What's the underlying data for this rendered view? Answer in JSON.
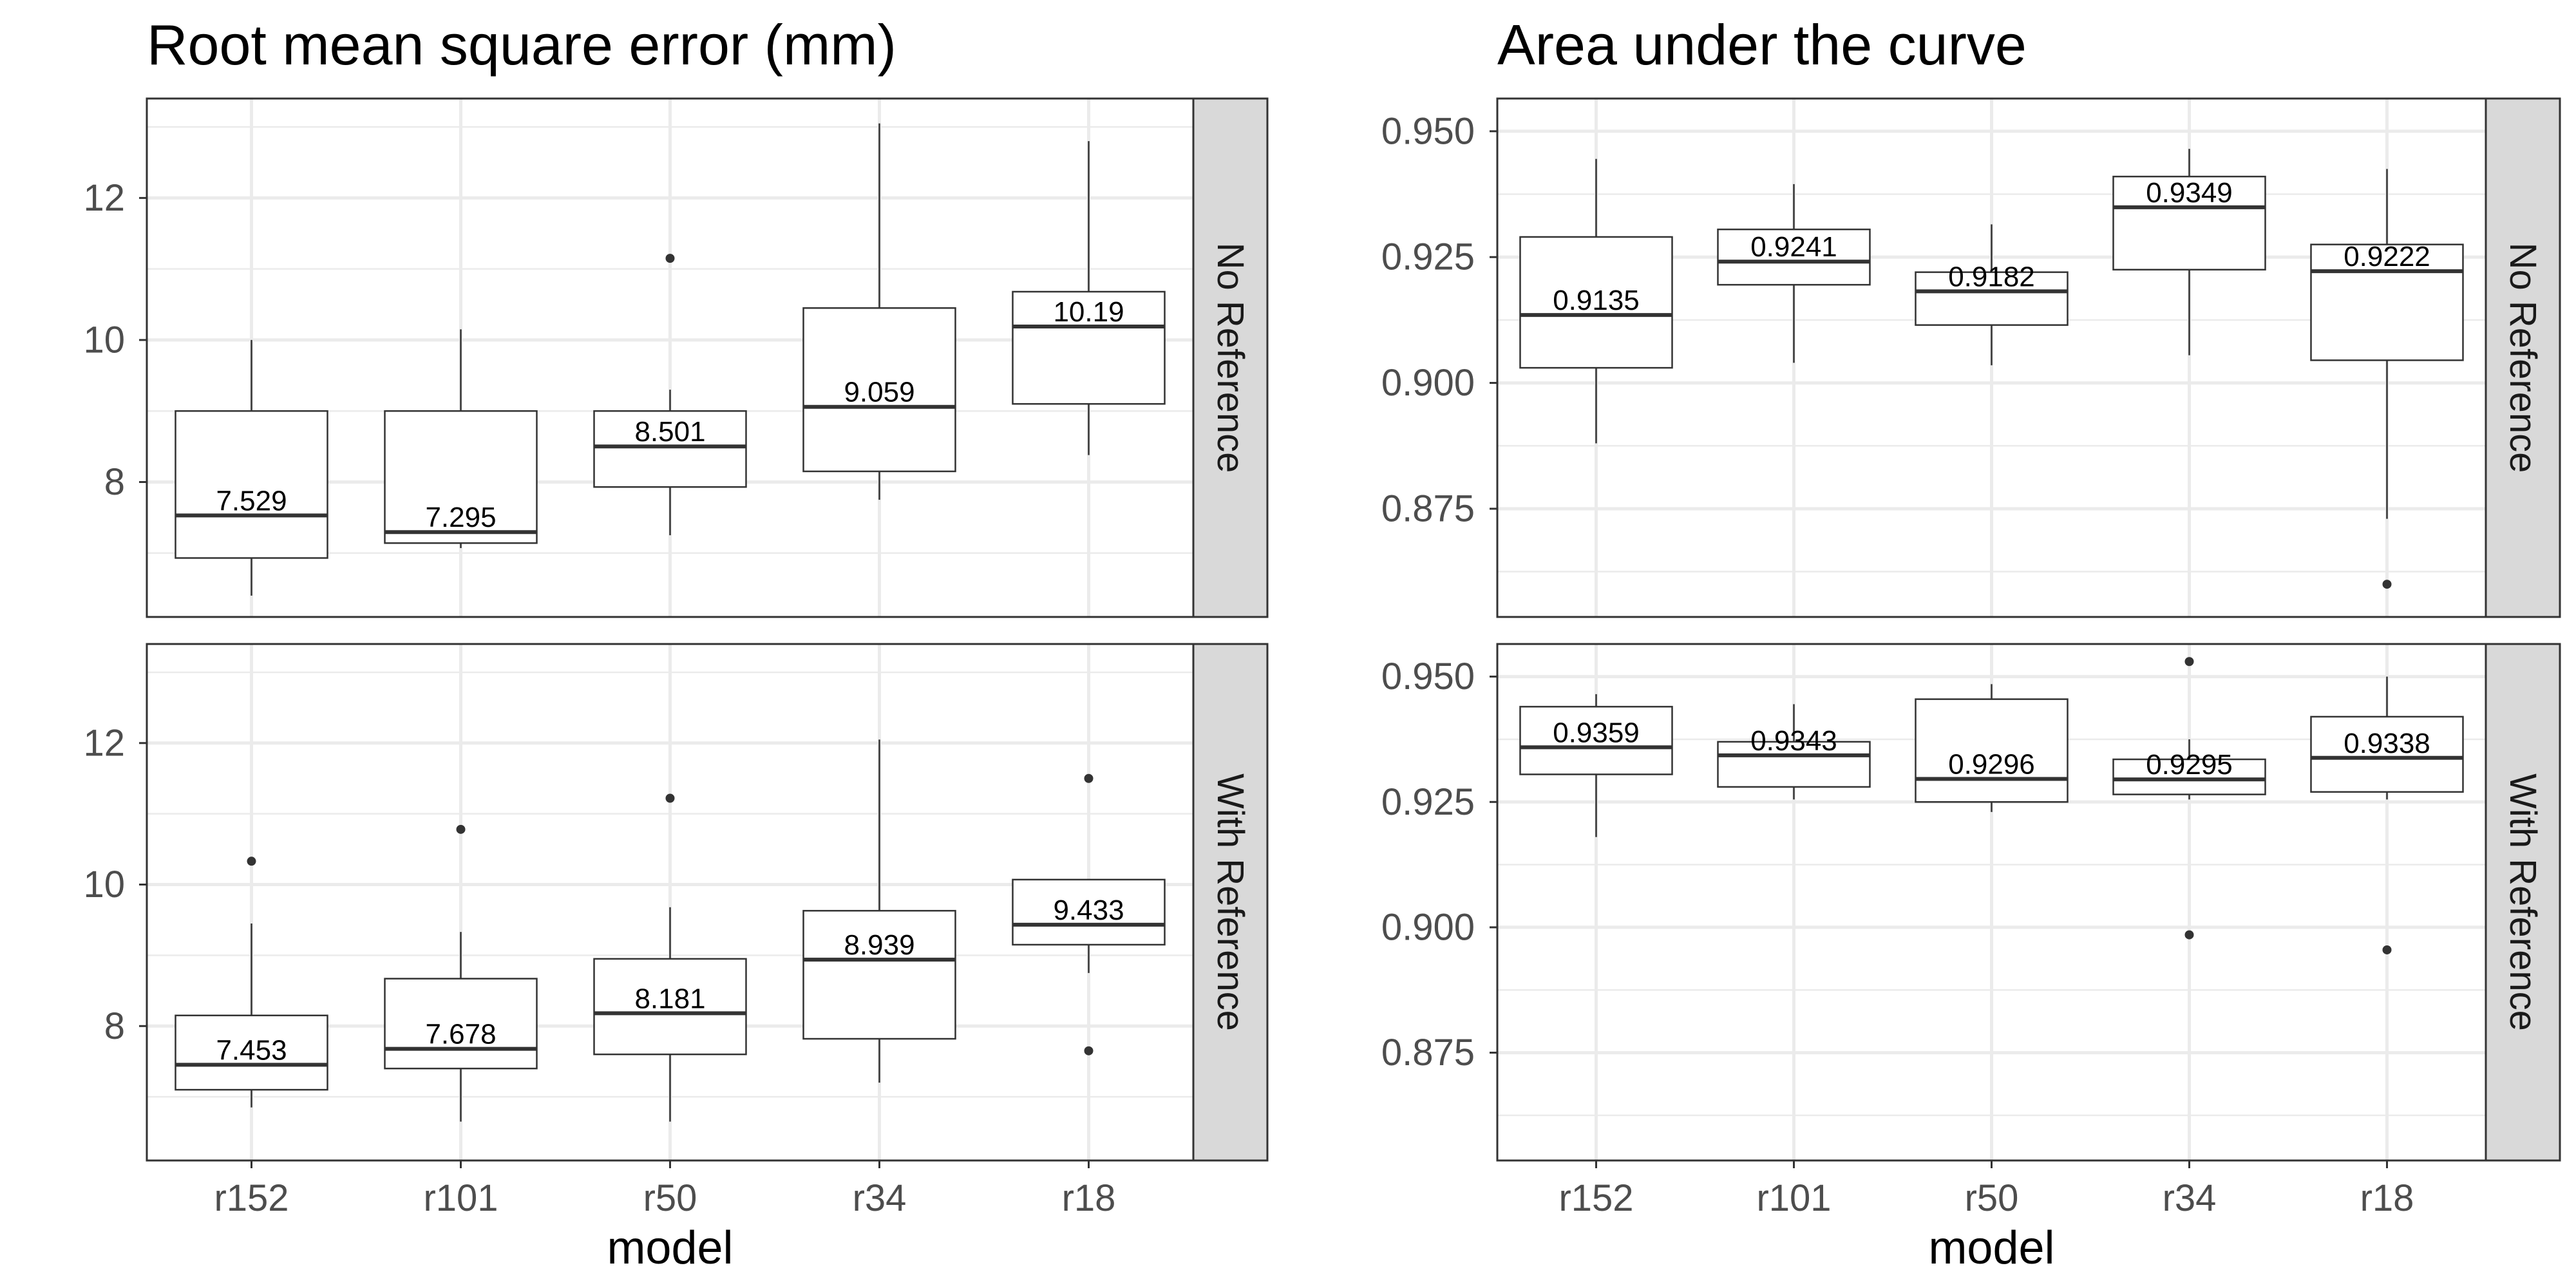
{
  "chart_data": [
    {
      "type": "boxplot",
      "title": "Root mean square error (mm)",
      "xlabel": "model",
      "ylabel": "",
      "categories": [
        "r152",
        "r101",
        "r50",
        "r34",
        "r18"
      ],
      "ylim": [
        6.1,
        13.4
      ],
      "y_ticks": [
        8,
        10,
        12
      ],
      "y_tick_labels": [
        "8",
        "10",
        "12"
      ],
      "grid": true,
      "facets": [
        {
          "strip": "No Reference",
          "boxes": [
            {
              "category": "r152",
              "median": 7.529,
              "median_label": "7.529",
              "q1": 6.93,
              "q3": 9.0,
              "whisker_low": 6.4,
              "whisker_high": 10.0,
              "outliers": []
            },
            {
              "category": "r101",
              "median": 7.295,
              "median_label": "7.295",
              "q1": 7.14,
              "q3": 9.0,
              "whisker_low": 7.07,
              "whisker_high": 10.15,
              "outliers": []
            },
            {
              "category": "r50",
              "median": 8.501,
              "median_label": "8.501",
              "q1": 7.93,
              "q3": 9.0,
              "whisker_low": 7.25,
              "whisker_high": 9.3,
              "outliers": [
                11.15
              ]
            },
            {
              "category": "r34",
              "median": 9.059,
              "median_label": "9.059",
              "q1": 8.15,
              "q3": 10.45,
              "whisker_low": 7.75,
              "whisker_high": 13.05,
              "outliers": []
            },
            {
              "category": "r18",
              "median": 10.19,
              "median_label": "10.19",
              "q1": 9.1,
              "q3": 10.68,
              "whisker_low": 8.38,
              "whisker_high": 12.8,
              "outliers": []
            }
          ]
        },
        {
          "strip": "With Reference",
          "boxes": [
            {
              "category": "r152",
              "median": 7.453,
              "median_label": "7.453",
              "q1": 7.1,
              "q3": 8.15,
              "whisker_low": 6.85,
              "whisker_high": 9.45,
              "outliers": [
                10.33
              ]
            },
            {
              "category": "r101",
              "median": 7.678,
              "median_label": "7.678",
              "q1": 7.4,
              "q3": 8.67,
              "whisker_low": 6.65,
              "whisker_high": 9.33,
              "outliers": [
                10.78
              ]
            },
            {
              "category": "r50",
              "median": 8.181,
              "median_label": "8.181",
              "q1": 7.6,
              "q3": 8.95,
              "whisker_low": 6.65,
              "whisker_high": 9.68,
              "outliers": [
                11.22
              ]
            },
            {
              "category": "r34",
              "median": 8.939,
              "median_label": "8.939",
              "q1": 7.82,
              "q3": 9.63,
              "whisker_low": 7.2,
              "whisker_high": 12.05,
              "outliers": []
            },
            {
              "category": "r18",
              "median": 9.433,
              "median_label": "9.433",
              "q1": 9.15,
              "q3": 10.07,
              "whisker_low": 8.75,
              "whisker_high": 10.07,
              "outliers": [
                11.5,
                7.65
              ]
            }
          ]
        }
      ]
    },
    {
      "type": "boxplot",
      "title": "Area under the curve",
      "xlabel": "model",
      "ylabel": "",
      "categories": [
        "r152",
        "r101",
        "r50",
        "r34",
        "r18"
      ],
      "ylim": [
        0.8535,
        0.9565
      ],
      "y_ticks": [
        0.875,
        0.9,
        0.925,
        0.95
      ],
      "y_tick_labels": [
        "0.875",
        "0.900",
        "0.925",
        "0.950"
      ],
      "grid": true,
      "facets": [
        {
          "strip": "No Reference",
          "boxes": [
            {
              "category": "r152",
              "median": 0.9135,
              "median_label": "0.9135",
              "q1": 0.903,
              "q3": 0.929,
              "whisker_low": 0.888,
              "whisker_high": 0.9445,
              "outliers": []
            },
            {
              "category": "r101",
              "median": 0.9241,
              "median_label": "0.9241",
              "q1": 0.9195,
              "q3": 0.9305,
              "whisker_low": 0.904,
              "whisker_high": 0.9395,
              "outliers": []
            },
            {
              "category": "r50",
              "median": 0.9182,
              "median_label": "0.9182",
              "q1": 0.9115,
              "q3": 0.922,
              "whisker_low": 0.9035,
              "whisker_high": 0.9315,
              "outliers": []
            },
            {
              "category": "r34",
              "median": 0.9349,
              "median_label": "0.9349",
              "q1": 0.9225,
              "q3": 0.941,
              "whisker_low": 0.9055,
              "whisker_high": 0.9465,
              "outliers": []
            },
            {
              "category": "r18",
              "median": 0.9222,
              "median_label": "0.9222",
              "q1": 0.9045,
              "q3": 0.9275,
              "whisker_low": 0.873,
              "whisker_high": 0.9425,
              "outliers": [
                0.86
              ]
            }
          ]
        },
        {
          "strip": "With Reference",
          "boxes": [
            {
              "category": "r152",
              "median": 0.9359,
              "median_label": "0.9359",
              "q1": 0.9305,
              "q3": 0.944,
              "whisker_low": 0.918,
              "whisker_high": 0.9465,
              "outliers": []
            },
            {
              "category": "r101",
              "median": 0.9343,
              "median_label": "0.9343",
              "q1": 0.928,
              "q3": 0.937,
              "whisker_low": 0.9255,
              "whisker_high": 0.9445,
              "outliers": []
            },
            {
              "category": "r50",
              "median": 0.9296,
              "median_label": "0.9296",
              "q1": 0.925,
              "q3": 0.9455,
              "whisker_low": 0.923,
              "whisker_high": 0.9485,
              "outliers": []
            },
            {
              "category": "r34",
              "median": 0.9295,
              "median_label": "0.9295",
              "q1": 0.9265,
              "q3": 0.9335,
              "whisker_low": 0.9255,
              "whisker_high": 0.9375,
              "outliers": [
                0.953,
                0.8985
              ]
            },
            {
              "category": "r18",
              "median": 0.9338,
              "median_label": "0.9338",
              "q1": 0.927,
              "q3": 0.942,
              "whisker_low": 0.9255,
              "whisker_high": 0.95,
              "outliers": [
                0.8955
              ]
            }
          ]
        }
      ]
    }
  ]
}
